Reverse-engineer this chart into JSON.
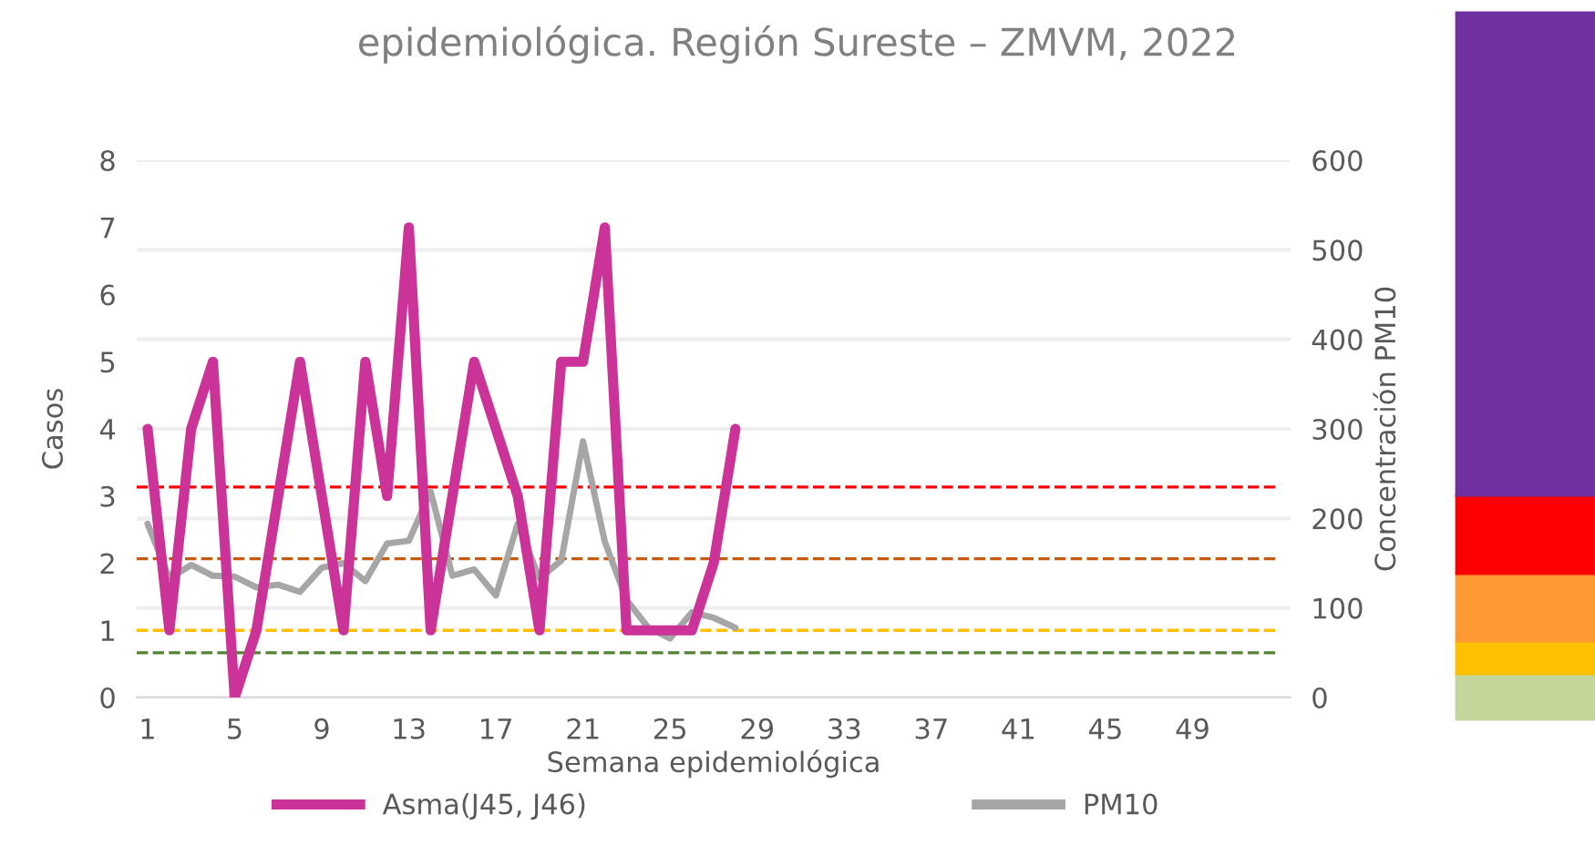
{
  "chart_data": {
    "type": "line",
    "title": "epidemiológica. Región Sureste – ZMVM, 2022",
    "xlabel": "Semana epidemiológica",
    "ylabel": "Casos",
    "y2label": "Concentración PM10",
    "x": [
      1,
      2,
      3,
      4,
      5,
      6,
      7,
      8,
      9,
      10,
      11,
      12,
      13,
      14,
      15,
      16,
      17,
      18,
      19,
      20,
      21,
      22,
      23,
      24,
      25,
      26,
      27,
      28
    ],
    "xlim": [
      0.5,
      53.5
    ],
    "xticks": [
      1,
      5,
      9,
      13,
      17,
      21,
      25,
      29,
      33,
      37,
      41,
      45,
      49
    ],
    "ylim": [
      0,
      8
    ],
    "yticks": [
      0,
      1,
      2,
      3,
      4,
      5,
      6,
      7,
      8
    ],
    "y2lim": [
      0,
      600
    ],
    "y2ticks": [
      0,
      100,
      200,
      300,
      400,
      500,
      600
    ],
    "series": [
      {
        "name": "Asma(J45, J46)",
        "color": "#cc3399",
        "values": [
          4,
          1,
          4,
          5,
          0,
          1,
          3,
          5,
          3,
          1,
          5,
          3,
          7,
          1,
          3,
          5,
          4,
          3,
          1,
          5,
          5,
          7,
          1,
          1,
          1,
          1,
          2,
          4
        ]
      },
      {
        "name": "PM10",
        "color": "#a6a6a6",
        "axis": "y2",
        "values": [
          194,
          133,
          148,
          136,
          135,
          123,
          126,
          118,
          145,
          150,
          130,
          172,
          175,
          230,
          136,
          143,
          114,
          194,
          133,
          153,
          286,
          174,
          109,
          78,
          66,
          95,
          89,
          78
        ]
      }
    ],
    "ref_lines": [
      {
        "axis": "y2",
        "value": 235,
        "color": "#ff0000",
        "line_style": "dashed"
      },
      {
        "axis": "y2",
        "value": 155,
        "color": "#c55a11",
        "line_style": "dashed"
      },
      {
        "axis": "y2",
        "value": 75,
        "color": "#ffc000",
        "line_style": "dashed"
      },
      {
        "axis": "y2",
        "value": 50,
        "color": "#548235",
        "line_style": "dashed"
      }
    ],
    "grid": "y",
    "legend": "bottom",
    "marker": "none",
    "line_style": "solid"
  }
}
